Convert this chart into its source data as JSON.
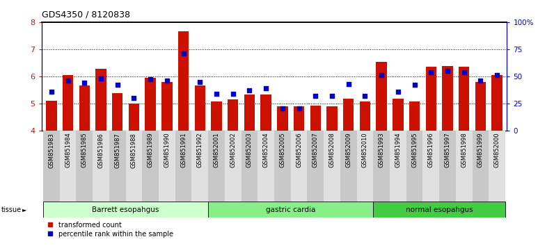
{
  "title": "GDS4350 / 8120838",
  "samples": [
    "GSM851983",
    "GSM851984",
    "GSM851985",
    "GSM851986",
    "GSM851987",
    "GSM851988",
    "GSM851989",
    "GSM851990",
    "GSM851991",
    "GSM851992",
    "GSM852001",
    "GSM852002",
    "GSM852003",
    "GSM852004",
    "GSM852005",
    "GSM852006",
    "GSM852007",
    "GSM852008",
    "GSM852009",
    "GSM852010",
    "GSM851993",
    "GSM851994",
    "GSM851995",
    "GSM851996",
    "GSM851997",
    "GSM851998",
    "GSM851999",
    "GSM852000"
  ],
  "transformed_count": [
    5.1,
    6.05,
    5.65,
    6.28,
    5.38,
    4.98,
    5.93,
    5.78,
    7.65,
    5.65,
    5.07,
    5.15,
    5.32,
    5.32,
    4.88,
    4.88,
    4.92,
    4.88,
    5.18,
    5.07,
    6.52,
    5.18,
    5.07,
    6.35,
    6.38,
    6.35,
    5.78,
    6.05
  ],
  "percentile_rank": [
    36,
    46,
    44,
    48,
    42,
    30,
    47,
    46,
    71,
    45,
    34,
    34,
    37,
    39,
    20,
    20,
    32,
    32,
    43,
    32,
    51,
    36,
    42,
    54,
    55,
    54,
    46,
    51
  ],
  "groups": [
    {
      "label": "Barrett esopahgus",
      "start": 0,
      "end": 9,
      "color": "#ccffcc"
    },
    {
      "label": "gastric cardia",
      "start": 10,
      "end": 19,
      "color": "#88ee88"
    },
    {
      "label": "normal esopahgus",
      "start": 20,
      "end": 27,
      "color": "#44cc44"
    }
  ],
  "ylim_left": [
    4,
    8
  ],
  "ylim_right": [
    0,
    100
  ],
  "yticks_left": [
    4,
    5,
    6,
    7,
    8
  ],
  "yticks_right": [
    0,
    25,
    50,
    75,
    100
  ],
  "bar_color": "#cc1100",
  "dot_color": "#0000cc",
  "bar_bottom": 4.0,
  "tissue_label": "tissue",
  "legend_items": [
    "transformed count",
    "percentile rank within the sample"
  ]
}
